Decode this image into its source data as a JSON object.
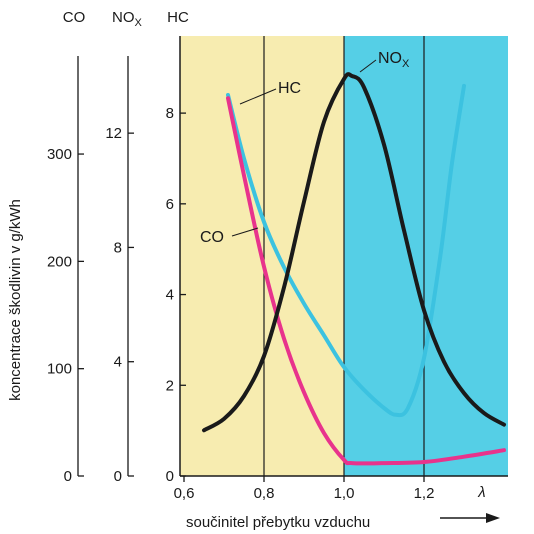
{
  "chart_data": {
    "type": "line",
    "x_axis": {
      "label": "součinitel přebytku vzduchu",
      "symbol": "λ",
      "range": [
        0.59,
        1.41
      ],
      "ticks": [
        "0,6",
        "0,8",
        "1,0",
        "1,2"
      ],
      "tick_values": [
        0.6,
        0.8,
        1.0,
        1.2
      ],
      "gridlines": [
        0.8,
        1.0,
        1.2
      ]
    },
    "y_label": "koncentrace škodlivin v g/kWh",
    "y_axes": [
      {
        "name": "CO",
        "range": [
          0,
          410
        ],
        "ticks": [
          "0",
          "100",
          "200",
          "300"
        ],
        "tick_values": [
          0,
          100,
          200,
          300
        ]
      },
      {
        "name": "NOX",
        "name_main": "NO",
        "name_sub": "X",
        "range": [
          0,
          15.4
        ],
        "ticks": [
          "0",
          "4",
          "8",
          "12"
        ],
        "tick_values": [
          0,
          4,
          8,
          12
        ]
      },
      {
        "name": "HC",
        "range": [
          0,
          9.7
        ],
        "ticks": [
          "0",
          "2",
          "4",
          "6",
          "8"
        ],
        "tick_values": [
          0,
          2,
          4,
          6,
          8
        ]
      }
    ],
    "regions": [
      {
        "x_range": [
          0.59,
          1.0
        ],
        "color": "#f7ecb0"
      },
      {
        "x_range": [
          1.0,
          1.41
        ],
        "color": "#55cfe6"
      }
    ],
    "series": [
      {
        "name": "HC",
        "axis": "HC",
        "color": "#3cc2e0",
        "x": [
          0.71,
          0.75,
          0.8,
          0.85,
          0.9,
          0.95,
          1.0,
          1.05,
          1.1,
          1.13,
          1.16,
          1.2,
          1.24,
          1.27,
          1.3
        ],
        "y": [
          8.4,
          7.0,
          5.6,
          4.6,
          3.8,
          3.1,
          2.4,
          1.9,
          1.5,
          1.35,
          1.5,
          2.6,
          4.8,
          6.9,
          8.6
        ]
      },
      {
        "name": "CO",
        "axis": "CO",
        "color": "#e8338c",
        "x": [
          0.71,
          0.75,
          0.8,
          0.85,
          0.9,
          0.95,
          1.0,
          1.02,
          1.1,
          1.2,
          1.3,
          1.4
        ],
        "y": [
          352,
          280,
          195,
          128,
          78,
          40,
          15,
          12,
          12,
          13,
          18,
          24
        ]
      },
      {
        "name": "NOX",
        "name_main": "NO",
        "name_sub": "X",
        "axis": "NOX",
        "color": "#1a1a1a",
        "x": [
          0.65,
          0.7,
          0.75,
          0.8,
          0.85,
          0.9,
          0.95,
          1.0,
          1.02,
          1.05,
          1.1,
          1.15,
          1.2,
          1.25,
          1.3,
          1.35,
          1.4
        ],
        "y": [
          1.6,
          2.0,
          2.8,
          4.2,
          6.6,
          9.6,
          12.4,
          13.9,
          14.0,
          13.6,
          11.6,
          8.6,
          5.8,
          4.0,
          2.9,
          2.2,
          1.8
        ]
      }
    ]
  }
}
